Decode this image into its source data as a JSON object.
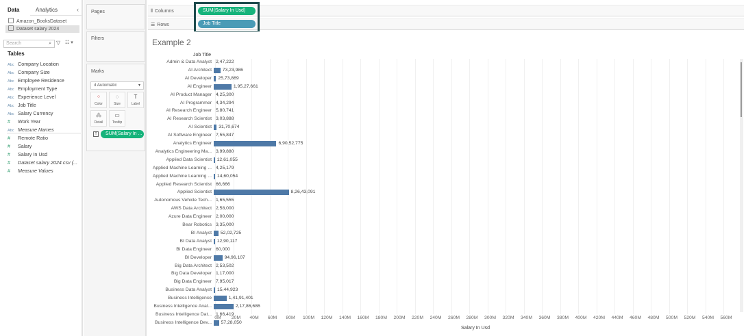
{
  "data_pane": {
    "tabs": [
      {
        "label": "Data"
      },
      {
        "label": "Analytics"
      }
    ],
    "collapse_icon": "‹",
    "datasources": [
      {
        "label": "Amazon_BooksDataset",
        "selected": false
      },
      {
        "label": "Dataset salary 2024",
        "selected": true
      }
    ],
    "search_placeholder": "Search",
    "tables_title": "Tables",
    "fields": [
      {
        "label": "Company Location",
        "type": "Abc",
        "kind": "dim",
        "italic": false
      },
      {
        "label": "Company Size",
        "type": "Abc",
        "kind": "dim",
        "italic": false
      },
      {
        "label": "Employee Residence",
        "type": "Abc",
        "kind": "dim",
        "italic": false
      },
      {
        "label": "Employment Type",
        "type": "Abc",
        "kind": "dim",
        "italic": false
      },
      {
        "label": "Experience Level",
        "type": "Abc",
        "kind": "dim",
        "italic": false
      },
      {
        "label": "Job Title",
        "type": "Abc",
        "kind": "dim",
        "italic": false
      },
      {
        "label": "Salary Currency",
        "type": "Abc",
        "kind": "dim",
        "italic": false
      },
      {
        "label": "Work Year",
        "type": "#",
        "kind": "dim",
        "italic": false
      },
      {
        "label": "Measure Names",
        "type": "Abc",
        "kind": "dim",
        "italic": true
      },
      {
        "label": "Remote Ratio",
        "type": "#",
        "kind": "measure",
        "italic": false
      },
      {
        "label": "Salary",
        "type": "#",
        "kind": "measure",
        "italic": false
      },
      {
        "label": "Salary In Usd",
        "type": "#",
        "kind": "measure",
        "italic": false
      },
      {
        "label": "Dataset salary 2024.csv (...",
        "type": "#",
        "kind": "measure",
        "italic": true
      },
      {
        "label": "Measure Values",
        "type": "#",
        "kind": "measure",
        "italic": true
      }
    ]
  },
  "cards": {
    "pages_title": "Pages",
    "filters_title": "Filters",
    "marks_title": "Marks",
    "mark_type": "Automatic",
    "mark_buttons": [
      {
        "label": "Color",
        "glyph": "⁘"
      },
      {
        "label": "Size",
        "glyph": "◌"
      },
      {
        "label": "Label",
        "glyph": "T"
      },
      {
        "label": "Detail",
        "glyph": "⁂"
      },
      {
        "label": "Tooltip",
        "glyph": "▭"
      }
    ],
    "label_pill": "SUM(Salary In ..."
  },
  "shelves": {
    "columns_label": "Columns",
    "rows_label": "Rows",
    "columns_pill": "SUM(Salary In Usd)",
    "rows_pill": "Job Title"
  },
  "colors": {
    "bar": "#4e79a7",
    "measure_pill": "#16b37b",
    "dimension_pill": "#4a9bb6",
    "highlight_border": "#1d4a4c"
  },
  "view": {
    "title": "Example 2",
    "column_header": "Job Title",
    "x_axis_title": "Salary In Usd"
  },
  "chart_data": {
    "type": "bar",
    "orientation": "horizontal",
    "title": "Example 2",
    "xlabel": "Salary In Usd",
    "ylabel": "Job Title",
    "xlim": [
      0,
      570000000
    ],
    "x_ticks": [
      "0M",
      "20M",
      "40M",
      "60M",
      "80M",
      "100M",
      "120M",
      "140M",
      "160M",
      "180M",
      "200M",
      "220M",
      "240M",
      "260M",
      "280M",
      "300M",
      "320M",
      "340M",
      "360M",
      "380M",
      "400M",
      "420M",
      "440M",
      "460M",
      "480M",
      "500M",
      "520M",
      "540M",
      "560M"
    ],
    "grid": true,
    "categories": [
      "Admin & Data Analyst",
      "AI Architect",
      "AI Developer",
      "AI Engineer",
      "AI Product Manager",
      "AI Programmer",
      "AI Research Engineer",
      "AI Research Scientist",
      "AI Scientist",
      "AI Software Engineer",
      "Analytics Engineer",
      "Analytics Engineering Ma...",
      "Applied Data Scientist",
      "Applied Machine Learning ...",
      "Applied Machine Learning ...",
      "Applied Research Scientist",
      "Applied Scientist",
      "Autonomous Vehicle Tech...",
      "AWS Data Architect",
      "Azure Data Engineer",
      "Bear Robotics",
      "BI Analyst",
      "BI Data Analyst",
      "BI Data Engineer",
      "BI Developer",
      "Big Data Architect",
      "Big Data Developer",
      "Big Data Engineer",
      "Business Data Analyst",
      "Business Intelligence",
      "Business Intelligence Anal...",
      "Business Intelligence Dat...",
      "Business Intelligence Dev..."
    ],
    "values": [
      247222,
      7323986,
      2573869,
      19527661,
      425300,
      434294,
      580741,
      303888,
      3170674,
      755847,
      69052775,
      399880,
      1261055,
      425179,
      1460054,
      66666,
      82643091,
      165555,
      258000,
      200000,
      335000,
      5202725,
      1290117,
      60000,
      9496107,
      253502,
      117000,
      795017,
      1544923,
      14191401,
      21786686,
      166419,
      5728050
    ],
    "value_labels": [
      "2,47,222",
      "73,23,986",
      "25,73,869",
      "1,95,27,661",
      "4,25,300",
      "4,34,294",
      "5,80,741",
      "3,03,888",
      "31,70,674",
      "7,55,847",
      "6,90,52,775",
      "3,99,880",
      "12,61,055",
      "4,25,179",
      "14,60,054",
      "66,666",
      "8,26,43,091",
      "1,65,555",
      "2,58,000",
      "2,00,000",
      "3,35,000",
      "52,02,725",
      "12,90,117",
      "60,000",
      "94,96,107",
      "2,53,502",
      "1,17,000",
      "7,95,017",
      "15,44,923",
      "1,41,91,401",
      "2,17,86,686",
      "1,66,419",
      "57,28,050"
    ]
  }
}
